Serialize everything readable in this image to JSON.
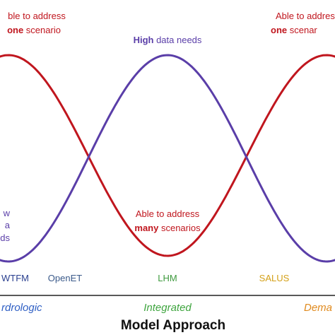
{
  "curves": {
    "top_left": {
      "line1": "ble to address",
      "bold": "one",
      "rest": " scenario"
    },
    "top_right": {
      "line1": "Able to addres",
      "bold": "one",
      "rest": " scenar"
    },
    "high": {
      "bold": "High",
      "rest": " data needs"
    },
    "middle": {
      "line1": "Able to address",
      "bold": "many",
      "rest": " scenarios"
    },
    "low_left": [
      "w",
      "a",
      "eds"
    ]
  },
  "models": [
    "WTFM",
    "OpenET",
    "LHM",
    "SALUS"
  ],
  "approaches": [
    "rdrologic",
    "Integrated",
    "Dema"
  ],
  "axis_title": "Model Approach"
}
